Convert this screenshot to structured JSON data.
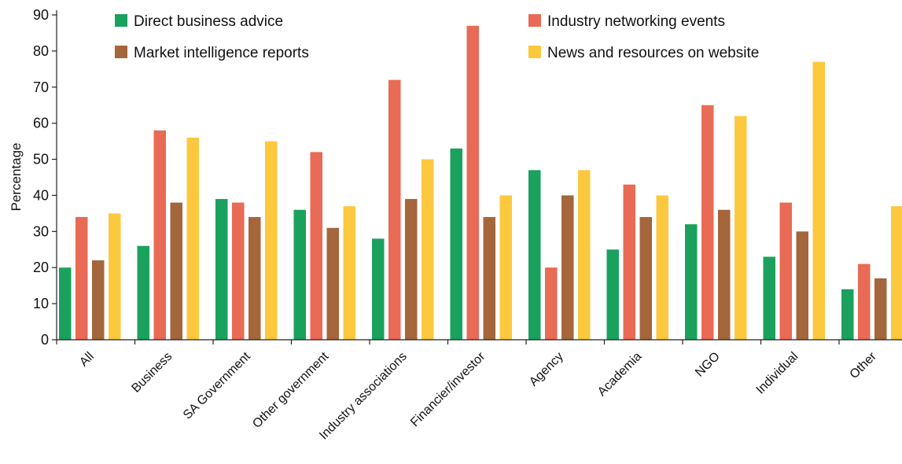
{
  "chart_data": {
    "type": "bar",
    "title": "",
    "xlabel": "",
    "ylabel": "Percentage",
    "ylim": [
      0,
      90
    ],
    "yticks": [
      0,
      10,
      20,
      30,
      40,
      50,
      60,
      70,
      80,
      90
    ],
    "grid": false,
    "legend_position": "top",
    "categories": [
      "All",
      "Business",
      "SA Government",
      "Other government",
      "Industry associations",
      "Financier/investor",
      "Agency",
      "Academia",
      "NGO",
      "Individual",
      "Other"
    ],
    "series": [
      {
        "name": "Direct business advice",
        "color": "#1aa15e",
        "values": [
          20,
          26,
          39,
          36,
          28,
          53,
          47,
          25,
          32,
          23,
          14
        ]
      },
      {
        "name": "Industry networking events",
        "color": "#e96a55",
        "values": [
          34,
          58,
          38,
          52,
          72,
          87,
          20,
          43,
          65,
          38,
          21
        ]
      },
      {
        "name": "Market intelligence reports",
        "color": "#a4663a",
        "values": [
          22,
          38,
          34,
          31,
          39,
          34,
          40,
          34,
          36,
          30,
          17
        ]
      },
      {
        "name": "News and resources on website",
        "color": "#fcc83e",
        "values": [
          35,
          56,
          55,
          37,
          50,
          40,
          47,
          40,
          62,
          77,
          37
        ]
      }
    ]
  }
}
